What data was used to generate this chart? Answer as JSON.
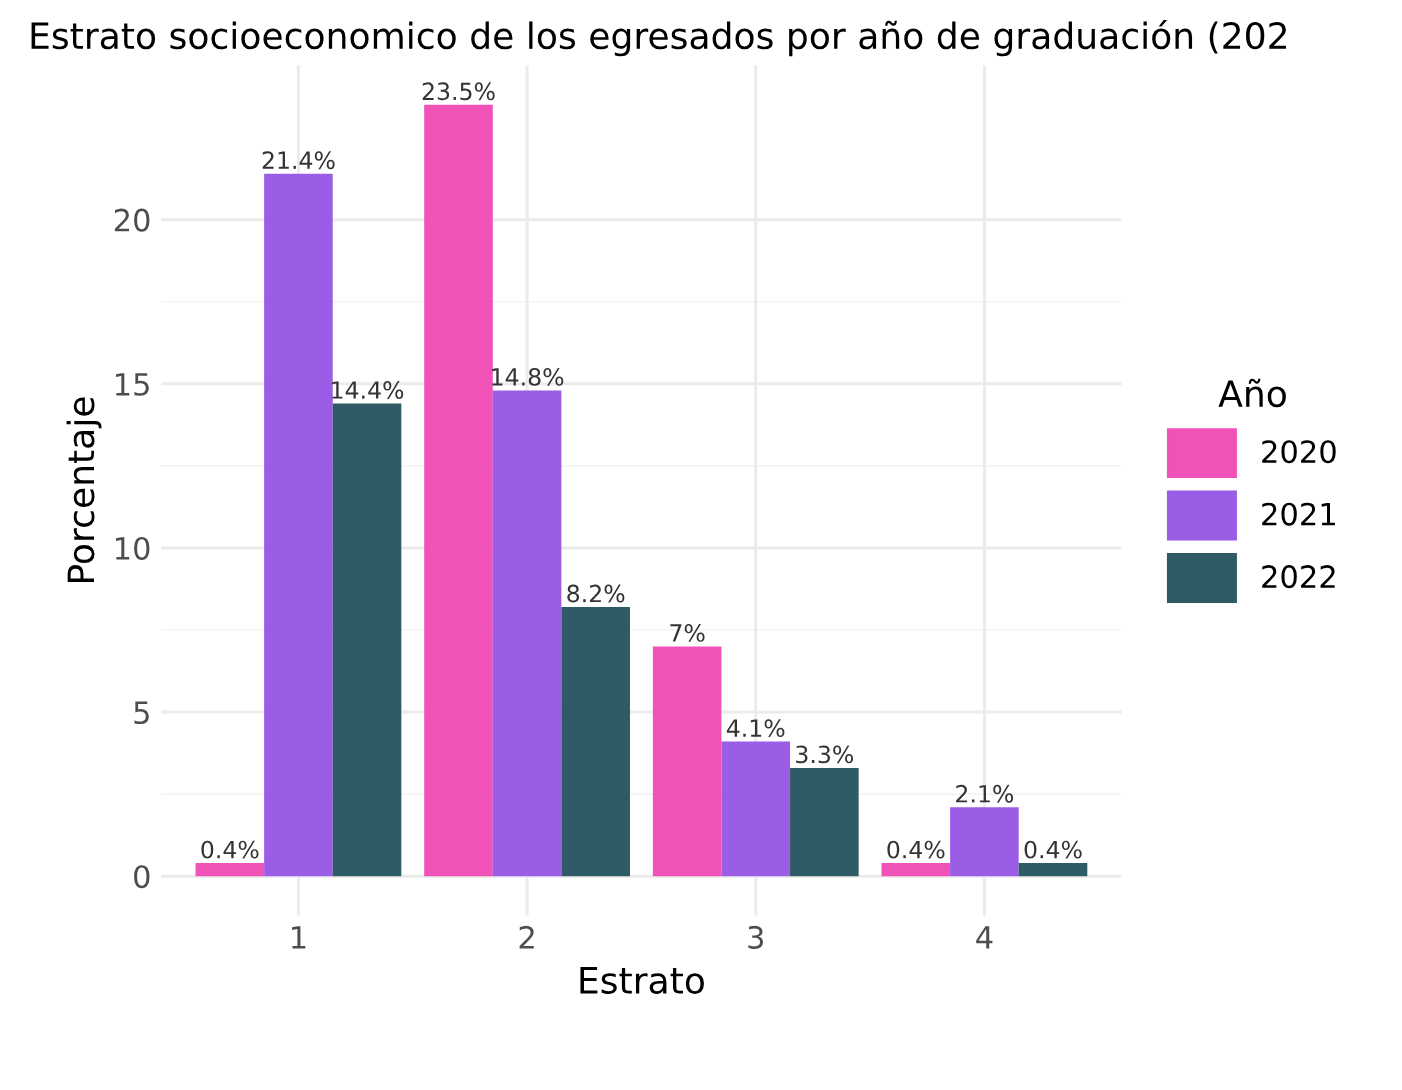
{
  "chart_data": {
    "type": "bar",
    "title": "Estrato socioeconomico de los egresados por año de graduación (202",
    "xlabel": "Estrato",
    "ylabel": "Porcentaje",
    "legend_title": "Año",
    "categories": [
      "1",
      "2",
      "3",
      "4"
    ],
    "series": [
      {
        "name": "2020",
        "color": "#f052b8",
        "values": [
          0.4,
          23.5,
          7,
          0.4
        ],
        "value_labels": [
          "0.4%",
          "23.5%",
          "7%",
          "0.4%"
        ]
      },
      {
        "name": "2021",
        "color": "#9b5de5",
        "values": [
          21.4,
          14.8,
          4.1,
          2.1
        ],
        "value_labels": [
          "21.4%",
          "14.8%",
          "4.1%",
          "2.1%"
        ]
      },
      {
        "name": "2022",
        "color": "#2f5b66",
        "values": [
          14.4,
          8.2,
          3.3,
          0.4
        ],
        "value_labels": [
          "14.4%",
          "8.2%",
          "3.3%",
          "0.4%"
        ]
      }
    ],
    "ylim": [
      -1.2,
      24.7
    ],
    "yticks": [
      0,
      5,
      10,
      15,
      20
    ],
    "grid": true,
    "legend": "right"
  }
}
